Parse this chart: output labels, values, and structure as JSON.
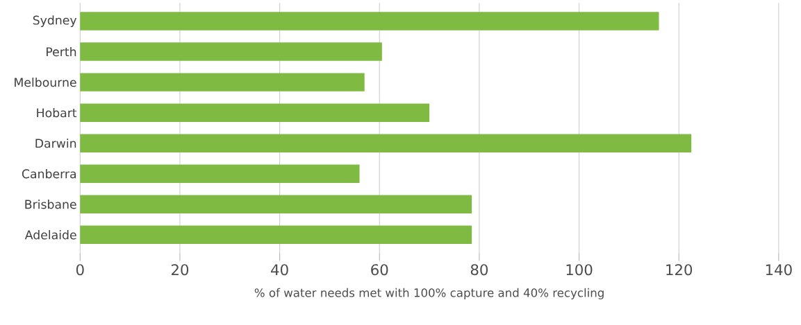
{
  "chart_data": {
    "type": "bar",
    "orientation": "horizontal",
    "xlabel": "% of water needs met with 100% capture and 40% recycling",
    "categories": [
      "Sydney",
      "Perth",
      "Melbourne",
      "Hobart",
      "Darwin",
      "Canberra",
      "Brisbane",
      "Adelaide"
    ],
    "values": [
      116,
      60.5,
      57,
      70,
      122.5,
      56,
      78.5,
      78.5
    ],
    "color": "#7fbb42",
    "xlim": [
      0,
      140
    ],
    "xticks": [
      0,
      20,
      40,
      60,
      80,
      100,
      120,
      140
    ],
    "grid": "x"
  }
}
